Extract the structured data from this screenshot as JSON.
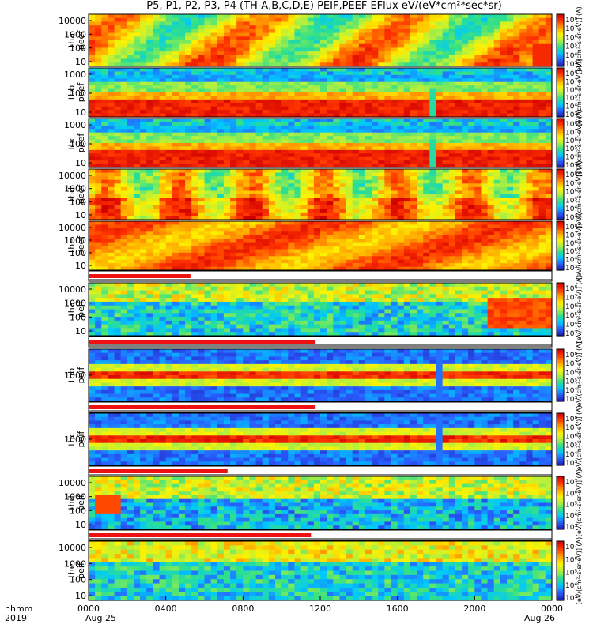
{
  "title": "P5, P1, P2, P3, P4 (TH-A,B,C,D,E) PEIF,PEEF EFlux eV/(eV*cm²*sec*sr)",
  "chart_data": {
    "type": "heatmap",
    "title": "P5, P1, P2, P3, P4 (TH-A,B,C,D,E) PEIF,PEEF EFlux eV/(eV*cm²*sec*sr)",
    "x_axis": {
      "label_row1": "hhmm",
      "label_row2": "2019",
      "ticks": [
        "0000",
        "0400",
        "0800",
        "1200",
        "1600",
        "2000",
        "0000"
      ],
      "date_labels": [
        "Aug 25",
        "Aug 26"
      ],
      "range_hours": [
        0,
        24
      ]
    },
    "colorbar_label": "[eV/(cm²-s-sr-eV)] (A)",
    "panels": [
      {
        "name": "tha_peef",
        "ylabel": [
          "tha",
          "peef"
        ],
        "yticks": [
          "10000",
          "1000",
          "100",
          "10"
        ],
        "cbar_ticks": [
          "10⁸",
          "10⁷",
          "10⁶",
          "10⁵",
          "10⁴",
          "10³"
        ]
      },
      {
        "name": "thb_peef",
        "ylabel": [
          "thb",
          "peef"
        ],
        "yticks": [
          "1000",
          "100",
          "10"
        ],
        "cbar_ticks": [
          "10⁸",
          "10⁷",
          "10⁶",
          "10⁵",
          "10⁴",
          "10³"
        ]
      },
      {
        "name": "thc_peef",
        "ylabel": [
          "thc",
          "peef"
        ],
        "yticks": [
          "1000",
          "100",
          "10"
        ],
        "cbar_ticks": [
          "10⁸",
          "10⁷",
          "10⁶",
          "10⁵",
          "10⁴",
          "10³"
        ]
      },
      {
        "name": "thd_peef",
        "ylabel": [
          "thd",
          "peef"
        ],
        "yticks": [
          "10000",
          "1000",
          "100",
          "10"
        ],
        "cbar_ticks": [
          "10⁸",
          "10⁷",
          "10⁶",
          "10⁵",
          "10⁴",
          "10³"
        ]
      },
      {
        "name": "the_peef",
        "ylabel": [
          "the",
          "peef"
        ],
        "yticks": [
          "10000",
          "1000",
          "100",
          "10"
        ],
        "cbar_ticks": [
          "10⁸",
          "10⁷",
          "10⁶",
          "10⁵",
          "10⁴",
          "10³"
        ]
      },
      {
        "name": "tha_peif",
        "ylabel": [
          "tha",
          "peif"
        ],
        "yticks": [
          "10000",
          "1000",
          "100",
          "10"
        ],
        "cbar_ticks": [
          "10⁸",
          "10⁷",
          "10⁶",
          "10⁵",
          "10⁴",
          "10³"
        ]
      },
      {
        "name": "thb_peif",
        "ylabel": [
          "thb",
          "peif"
        ],
        "yticks": [
          "1000"
        ],
        "cbar_ticks": [
          "10⁸",
          "10⁷",
          "10⁶",
          "10⁵",
          "10⁴",
          "10³"
        ]
      },
      {
        "name": "thc_peif",
        "ylabel": [
          "thc",
          "peif"
        ],
        "yticks": [
          "1000"
        ],
        "cbar_ticks": [
          "10⁸",
          "10⁷",
          "10⁶",
          "10⁵",
          "10⁴",
          "10³"
        ]
      },
      {
        "name": "thd_peif",
        "ylabel": [
          "thd",
          "peif"
        ],
        "yticks": [
          "10000",
          "1000",
          "100",
          "10"
        ],
        "cbar_ticks": [
          "10⁷",
          "10⁶",
          "10⁵",
          "10⁴",
          "10³"
        ]
      },
      {
        "name": "the_peif",
        "ylabel": [
          "the",
          "peif"
        ],
        "yticks": [
          "10000",
          "1000",
          "100",
          "10"
        ],
        "cbar_ticks": [
          "10⁷",
          "10⁶",
          "10⁵",
          "10⁴",
          "10³"
        ]
      }
    ],
    "colors": {
      "scale": [
        "#1a1aa8",
        "#2a5cff",
        "#00c8ff",
        "#2fe08a",
        "#b8f03a",
        "#fff200",
        "#ff9a00",
        "#ff3300",
        "#d00000"
      ],
      "bar_red": "#ee1111",
      "bar_black": "#000000",
      "gap": "#ffffff"
    }
  }
}
